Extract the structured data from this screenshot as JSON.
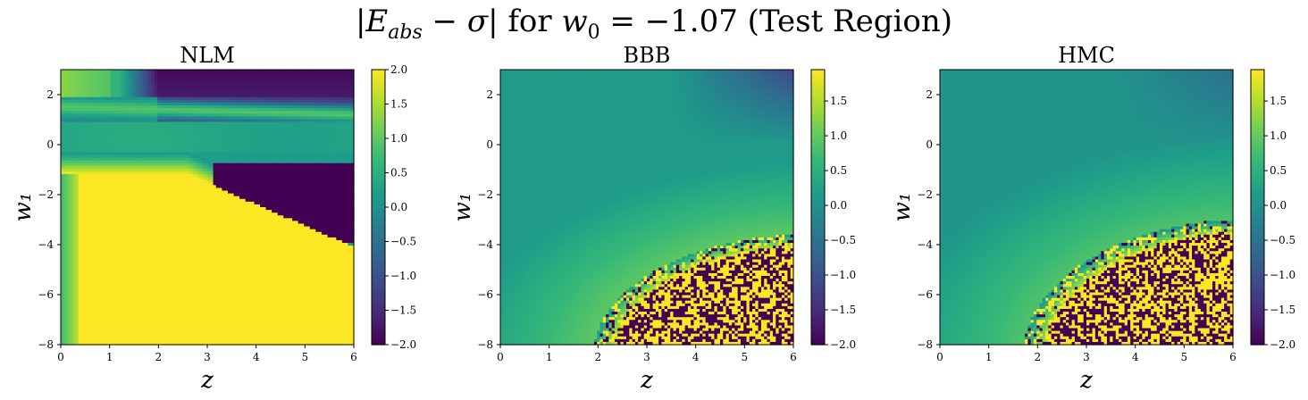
{
  "figure": {
    "title": "|E_abs − σ| for w₀ = −1.07 (Test Region)"
  },
  "chart_data": [
    {
      "type": "heatmap",
      "title": "NLM",
      "xlabel": "z",
      "ylabel": "w₁",
      "xlim": [
        0,
        6
      ],
      "ylim": [
        -8,
        3
      ],
      "xticks": [
        "0",
        "1",
        "2",
        "3",
        "4",
        "5",
        "6"
      ],
      "yticks": [
        "−8",
        "−6",
        "−4",
        "−2",
        "0",
        "2"
      ],
      "colorbar": {
        "min": -2.0,
        "max": 2.0,
        "ticks": [
          "2.0",
          "1.5",
          "1.0",
          "0.5",
          "0.0",
          "−0.5",
          "−1.0",
          "−1.5",
          "−2.0"
        ],
        "tick_values": [
          2.0,
          1.5,
          1.0,
          0.5,
          0.0,
          -0.5,
          -1.0,
          -1.5,
          -2.0
        ]
      },
      "colormap": "viridis",
      "description_of_field": "smooth: yellow (~2) below boundary w1 ≈ −1.1 − 0.9(z−2.5) for z>~1; dark (−2) wedge for z>3.1, −3.8<w1<−0.8; teal band near w1≈0; dark purple top-right; bright band near w1≈1.5 at small z",
      "grid": false
    },
    {
      "type": "heatmap",
      "title": "BBB",
      "xlabel": "z",
      "ylabel": "w₁",
      "xlim": [
        0,
        6
      ],
      "ylim": [
        -8,
        3
      ],
      "xticks": [
        "0",
        "1",
        "2",
        "3",
        "4",
        "5",
        "6"
      ],
      "yticks": [
        "−8",
        "−6",
        "−4",
        "−2",
        "0",
        "2"
      ],
      "colorbar": {
        "min": -2.0,
        "max": 1.95,
        "ticks": [
          "1.5",
          "1.0",
          "0.5",
          "0.0",
          "−0.5",
          "−1.0",
          "−1.5",
          "−2.0"
        ],
        "tick_values": [
          1.5,
          1.0,
          0.5,
          0.0,
          -0.5,
          -1.0,
          -1.5,
          -2.0
        ]
      },
      "colormap": "viridis",
      "description_of_field": "mostly teal (~0.2); noisy yellow/purple region in lower-right (z>~2, w1<~−3.5); darker blue at top-right",
      "grid": false
    },
    {
      "type": "heatmap",
      "title": "HMC",
      "xlabel": "z",
      "ylabel": "w₁",
      "xlim": [
        0,
        6
      ],
      "ylim": [
        -8,
        3
      ],
      "xticks": [
        "0",
        "1",
        "2",
        "3",
        "4",
        "5",
        "6"
      ],
      "yticks": [
        "−8",
        "−6",
        "−4",
        "−2",
        "0",
        "2"
      ],
      "colorbar": {
        "min": -2.0,
        "max": 1.95,
        "ticks": [
          "1.5",
          "1.0",
          "0.5",
          "0.0",
          "−0.5",
          "−1.0",
          "−1.5",
          "−2.0"
        ],
        "tick_values": [
          1.5,
          1.0,
          0.5,
          0.0,
          -0.5,
          -1.0,
          -1.5,
          -2.0
        ]
      },
      "colormap": "viridis",
      "description_of_field": "mostly teal (~0.1); noisy yellow/purple region in lower-right (z>~1.8, w1<~−3); slightly darker teal at top-right",
      "grid": false
    }
  ]
}
